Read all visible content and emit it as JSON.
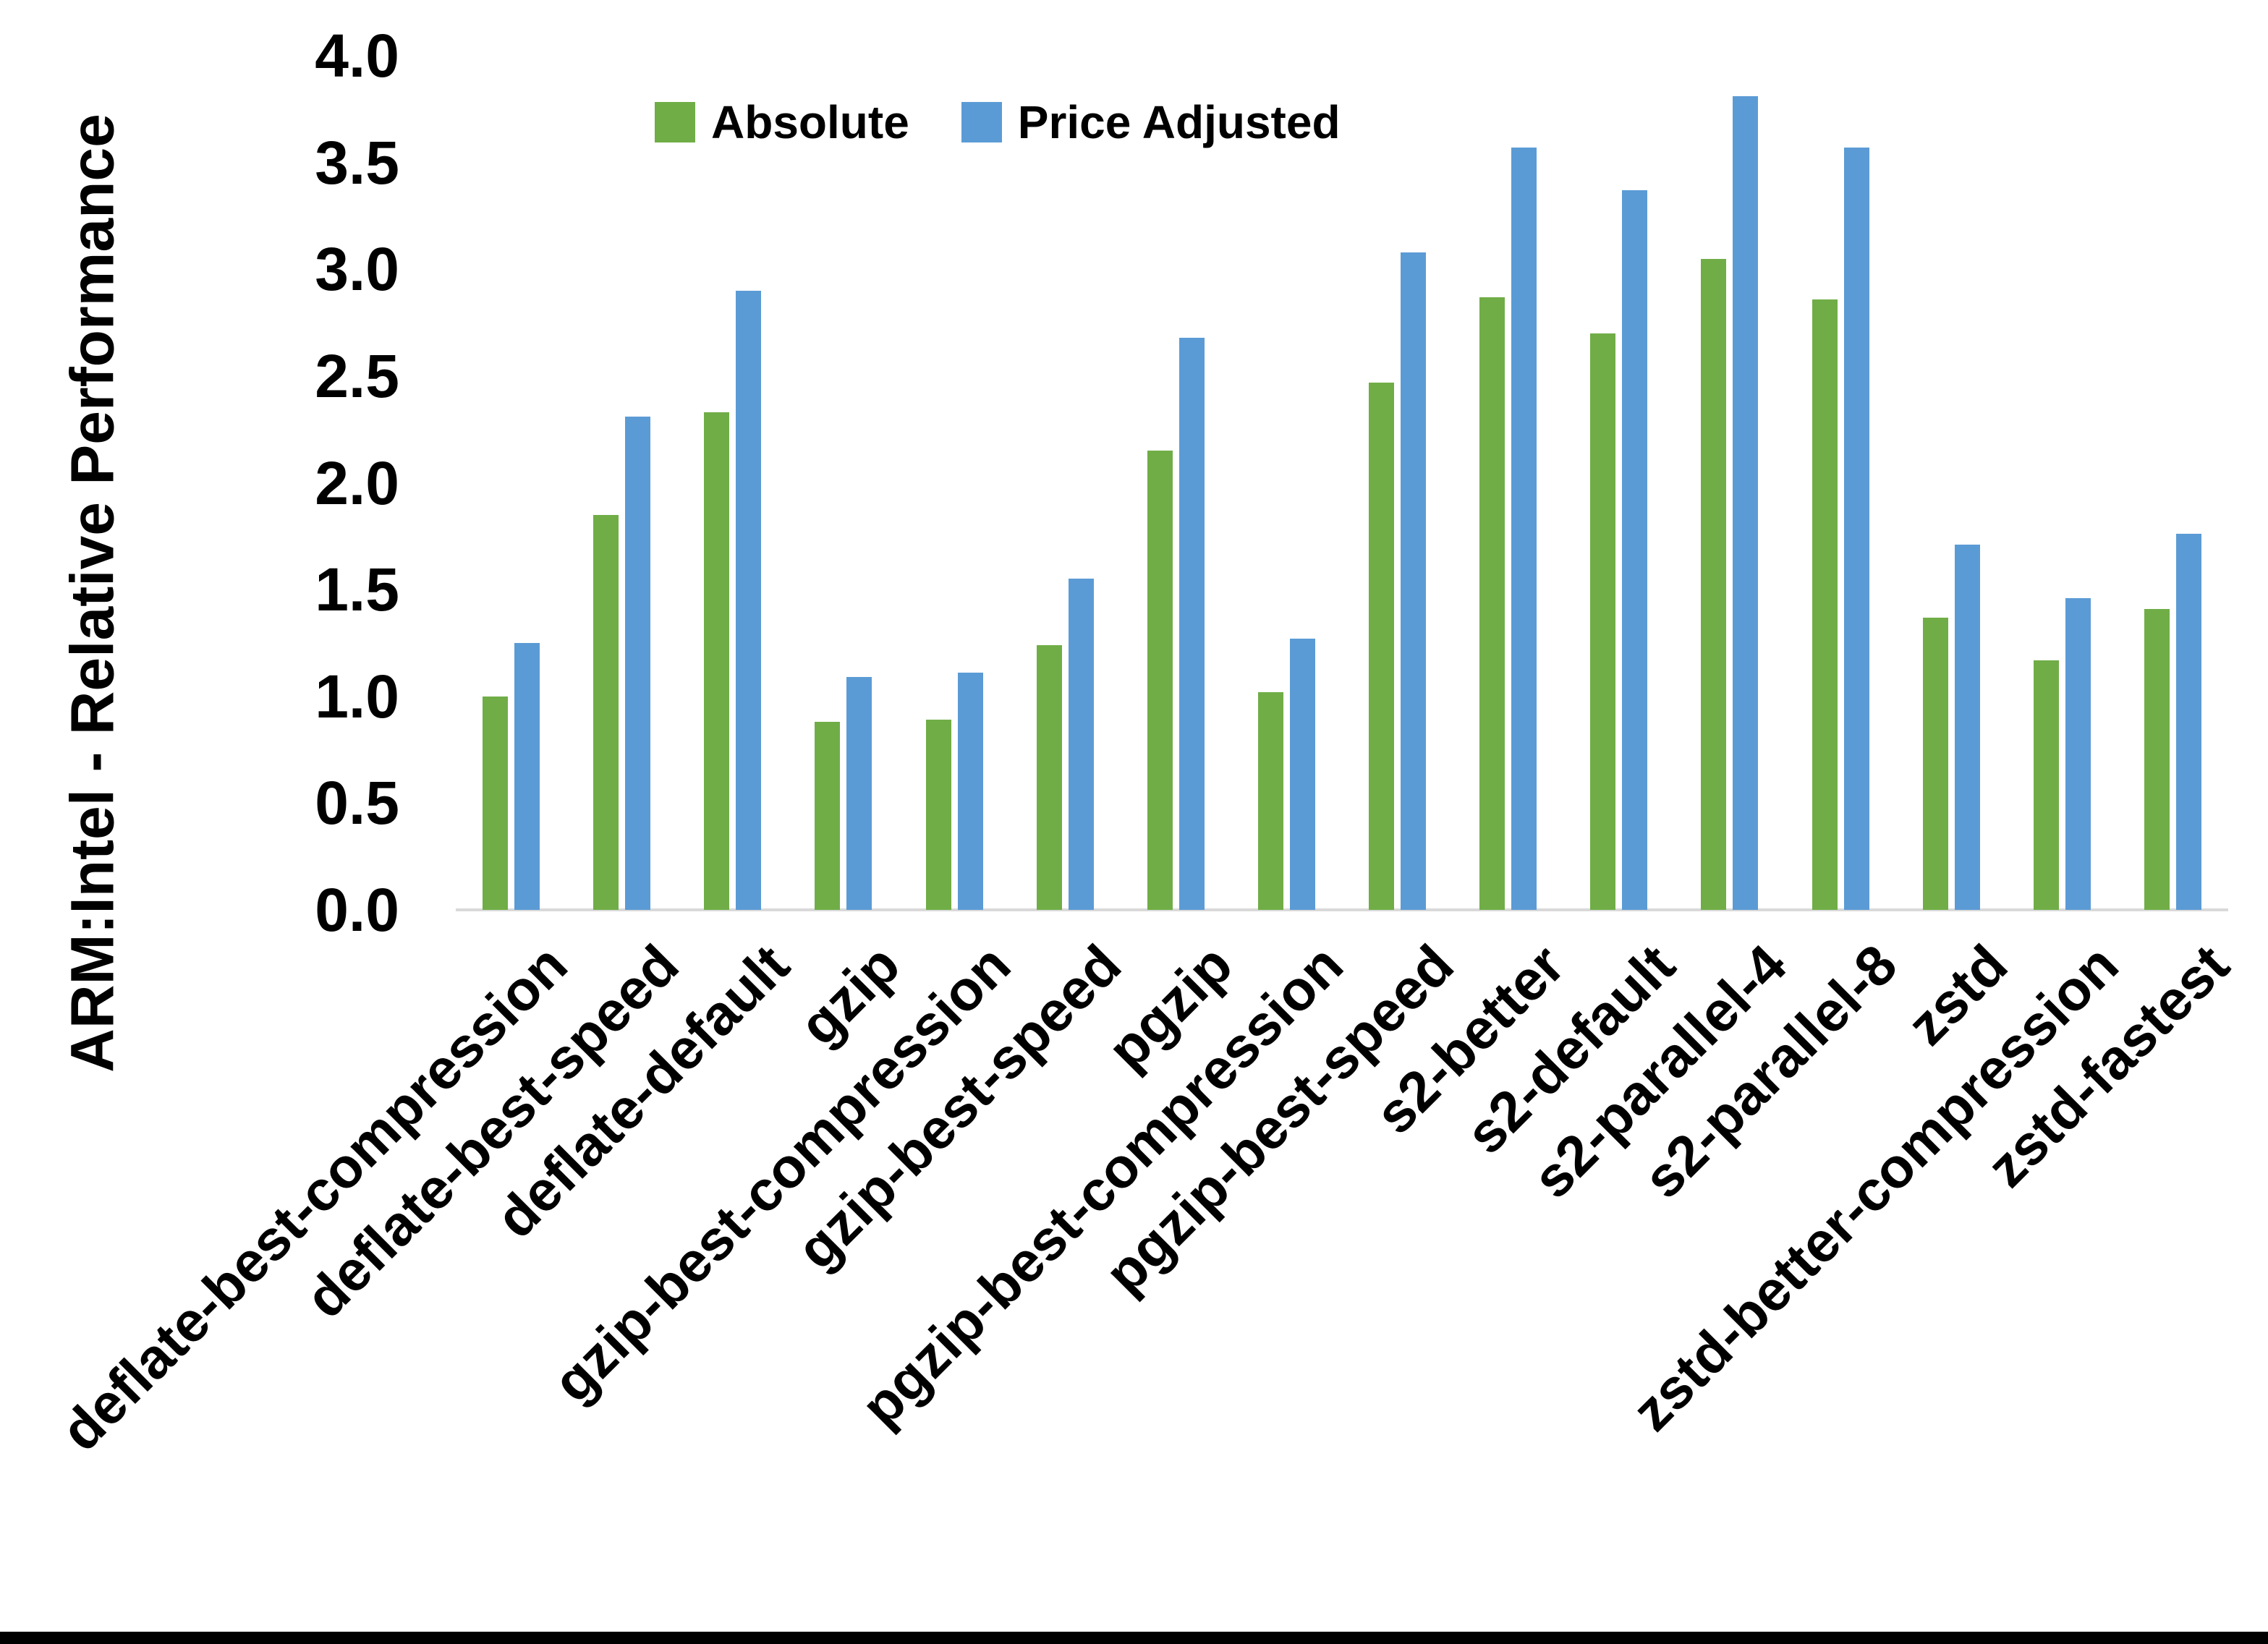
{
  "chart_data": {
    "type": "bar",
    "title": "",
    "xlabel": "",
    "ylabel": "ARM:Intel - Relative Performance",
    "ylim": [
      0.0,
      4.0
    ],
    "ytick_step": 0.5,
    "ytick_labels": [
      "0.0",
      "0.5",
      "1.0",
      "1.5",
      "2.0",
      "2.5",
      "3.0",
      "3.5",
      "4.0"
    ],
    "grid": false,
    "legend_position": "top-center",
    "categories": [
      "deflate-best-compression",
      "deflate-best-speed",
      "deflate-default",
      "gzip",
      "gzip-best-compression",
      "gzip-best-speed",
      "pgzip",
      "pgzip-best-compression",
      "pgzip-best-speed",
      "s2-better",
      "s2-default",
      "s2-parallel-4",
      "s2-parallel-8",
      "zstd",
      "zstd-better-compression",
      "zstd-fastest"
    ],
    "series": [
      {
        "name": "Absolute",
        "color": "#70AD47",
        "values": [
          1.0,
          1.85,
          2.33,
          0.88,
          0.89,
          1.24,
          2.15,
          1.02,
          2.47,
          2.87,
          2.7,
          3.05,
          2.86,
          1.37,
          1.17,
          1.41
        ]
      },
      {
        "name": "Price Adjusted",
        "color": "#5B9BD5",
        "values": [
          1.25,
          2.31,
          2.9,
          1.09,
          1.11,
          1.55,
          2.68,
          1.27,
          3.08,
          3.57,
          3.37,
          3.81,
          3.57,
          1.71,
          1.46,
          1.76
        ]
      }
    ]
  },
  "colors": {
    "background": "#FFFFFF",
    "axis_line": "#D9D9D9",
    "text": "#000000",
    "bottom_border": "#000000"
  }
}
